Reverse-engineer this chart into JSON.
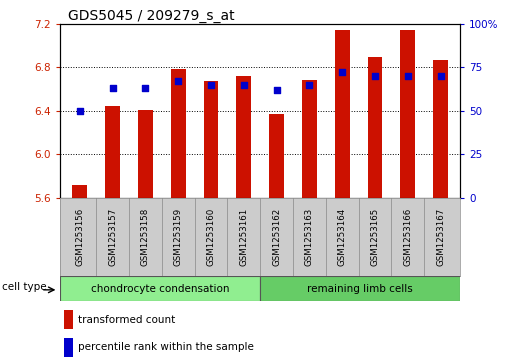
{
  "title": "GDS5045 / 209279_s_at",
  "samples": [
    "GSM1253156",
    "GSM1253157",
    "GSM1253158",
    "GSM1253159",
    "GSM1253160",
    "GSM1253161",
    "GSM1253162",
    "GSM1253163",
    "GSM1253164",
    "GSM1253165",
    "GSM1253166",
    "GSM1253167"
  ],
  "transformed_count": [
    5.72,
    6.44,
    6.41,
    6.78,
    6.67,
    6.72,
    6.37,
    6.68,
    7.14,
    6.89,
    7.14,
    6.87
  ],
  "percentile_rank": [
    50,
    63,
    63,
    67,
    65,
    65,
    62,
    65,
    72,
    70,
    70,
    70
  ],
  "ylim_left": [
    5.6,
    7.2
  ],
  "ylim_right": [
    0,
    100
  ],
  "yticks_left": [
    5.6,
    6.0,
    6.4,
    6.8,
    7.2
  ],
  "yticks_right": [
    0,
    25,
    50,
    75,
    100
  ],
  "ytick_labels_right": [
    "0",
    "25",
    "50",
    "75",
    "100%"
  ],
  "bar_color": "#cc1100",
  "dot_color": "#0000cc",
  "bar_bottom": 5.6,
  "group1_label": "chondrocyte condensation",
  "group2_label": "remaining limb cells",
  "cell_type_label": "cell type",
  "legend1": "transformed count",
  "legend2": "percentile rank within the sample",
  "xlabel_bg": "#cccccc",
  "group1_bg": "#90ee90",
  "group2_bg": "#66cc66",
  "title_fontsize": 10,
  "tick_fontsize": 7.5
}
